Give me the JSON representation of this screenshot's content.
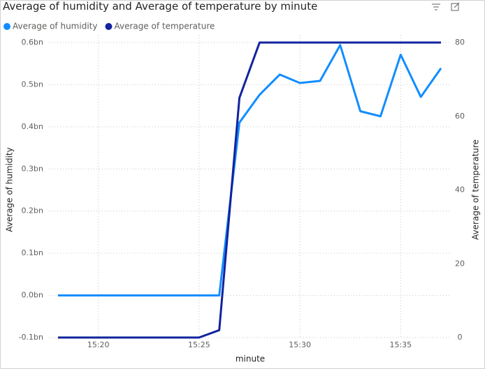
{
  "chart_data": {
    "type": "line",
    "title": "Average of humidity and Average of temperature by minute",
    "x_label": "minute",
    "y_label": "Average of humidity",
    "y2_label": "Average of temperature",
    "x": [
      "15:18",
      "15:19",
      "15:20",
      "15:21",
      "15:22",
      "15:23",
      "15:24",
      "15:25",
      "15:26",
      "15:27",
      "15:28",
      "15:29",
      "15:30",
      "15:31",
      "15:32",
      "15:33",
      "15:34",
      "15:35",
      "15:36",
      "15:37"
    ],
    "xlim": [
      "15:18",
      "15:37"
    ],
    "xticks": [
      "15:20",
      "15:25",
      "15:30",
      "15:35"
    ],
    "ylim": [
      -100000000,
      600000000
    ],
    "yticks": [
      {
        "value": -100000000,
        "label": "-0.1bn"
      },
      {
        "value": 0,
        "label": "0.0bn"
      },
      {
        "value": 100000000,
        "label": "0.1bn"
      },
      {
        "value": 200000000,
        "label": "0.2bn"
      },
      {
        "value": 300000000,
        "label": "0.3bn"
      },
      {
        "value": 400000000,
        "label": "0.4bn"
      },
      {
        "value": 500000000,
        "label": "0.5bn"
      },
      {
        "value": 600000000,
        "label": "0.6bn"
      }
    ],
    "y2lim": [
      0,
      80
    ],
    "y2ticks": [
      0,
      20,
      40,
      60,
      80
    ],
    "grid": true,
    "series": [
      {
        "name": "Average of humidity",
        "color": "#118DFF",
        "values": [
          0,
          0,
          0,
          0,
          0,
          0,
          0,
          0,
          0,
          410000000,
          476000000,
          524000000,
          504000000,
          509000000,
          594000000,
          437000000,
          425000000,
          571000000,
          471000000,
          539000000
        ]
      },
      {
        "name": "Average of temperature",
        "color": "#12239E",
        "axis": "y2",
        "values": [
          0,
          0,
          0,
          0,
          0,
          0,
          0,
          0,
          2,
          65,
          80,
          80,
          80,
          80,
          80,
          80,
          80,
          80,
          80,
          80
        ]
      }
    ]
  }
}
